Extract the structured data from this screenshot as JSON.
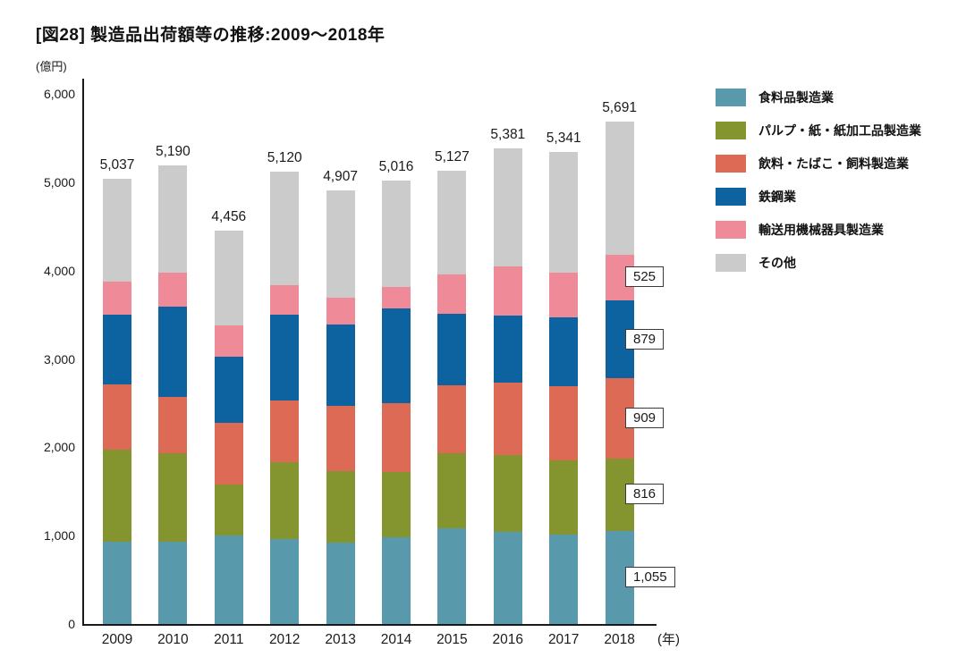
{
  "title": "[図28] 製造品出荷額等の推移:2009〜2018年",
  "y_axis_unit": "(億円)",
  "x_axis_unit": "(年)",
  "chart_data": {
    "type": "bar",
    "stacked": true,
    "title": "製造品出荷額等の推移:2009〜2018年",
    "ylabel": "(億円)",
    "xlabel": "(年)",
    "ylim": [
      0,
      6000
    ],
    "grid": false,
    "legend_position": "right",
    "y_ticks": [
      0,
      1000,
      2000,
      3000,
      4000,
      5000,
      6000
    ],
    "y_tick_labels": [
      "0",
      "1,000",
      "2,000",
      "3,000",
      "4,000",
      "5,000",
      "6,000"
    ],
    "categories": [
      "2009",
      "2010",
      "2011",
      "2012",
      "2013",
      "2014",
      "2015",
      "2016",
      "2017",
      "2018"
    ],
    "series": [
      {
        "name": "食料品製造業",
        "color": "#5899AB",
        "values": [
          930,
          930,
          1000,
          965,
          925,
          985,
          1085,
          1040,
          1010,
          1055
        ]
      },
      {
        "name": "パルプ・紙・紙加工品製造業",
        "color": "#84952F",
        "values": [
          1045,
          1005,
          580,
          865,
          810,
          735,
          850,
          875,
          845,
          816
        ]
      },
      {
        "name": "飲料・たばこ・飼料製造業",
        "color": "#DC6A55",
        "values": [
          740,
          640,
          695,
          700,
          735,
          780,
          770,
          820,
          835,
          909
        ]
      },
      {
        "name": "鉄鋼業",
        "color": "#0C63A0",
        "values": [
          785,
          1015,
          750,
          970,
          920,
          1070,
          810,
          755,
          785,
          879
        ]
      },
      {
        "name": "輸送用機械器具製造業",
        "color": "#EF8B99",
        "values": [
          380,
          390,
          355,
          340,
          305,
          245,
          445,
          560,
          505,
          525
        ]
      },
      {
        "name": "その他",
        "color": "#CBCBCB",
        "values": [
          1157,
          1210,
          1076,
          1280,
          1212,
          1201,
          1167,
          1331,
          1361,
          1507
        ]
      }
    ],
    "totals": [
      5037,
      5190,
      4456,
      5120,
      4907,
      5016,
      5127,
      5381,
      5341,
      5691
    ],
    "total_labels": [
      "5,037",
      "5,190",
      "4,456",
      "5,120",
      "4,907",
      "5,016",
      "5,127",
      "5,381",
      "5,341",
      "5,691"
    ],
    "callouts_2018": [
      {
        "series": "輸送用機械器具製造業",
        "label": "525"
      },
      {
        "series": "鉄鋼業",
        "label": "879"
      },
      {
        "series": "飲料・たばこ・飼料製造業",
        "label": "909"
      },
      {
        "series": "パルプ・紙・紙加工品製造業",
        "label": "816"
      },
      {
        "series": "食料品製造業",
        "label": "1,055"
      }
    ]
  },
  "colors": {
    "axis": "#1A1A1A",
    "background": "#FFFFFF",
    "callout_border": "#3A3A3A"
  }
}
